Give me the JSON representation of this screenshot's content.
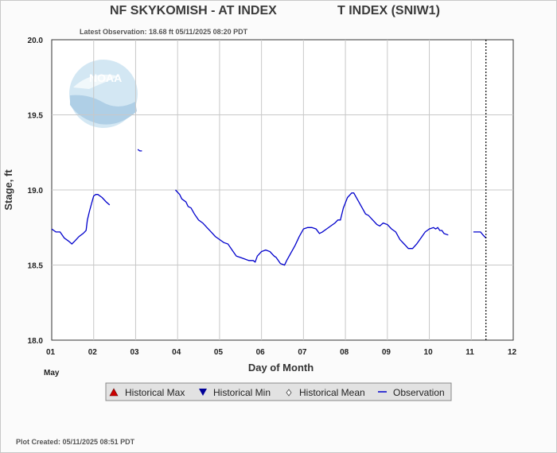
{
  "header": {
    "title_left": "NF SKYKOMISH - AT INDEX",
    "title_right": "T INDEX  (SNIW1)",
    "latest_observation": "Latest Observation: 18.68 ft 05/11/2025 08:20 PDT"
  },
  "footer": {
    "plot_created": "Plot Created: 05/11/2025 08:51 PDT"
  },
  "logo_text": "NOAA",
  "colors": {
    "observation": "#0000cc",
    "historical_max": "#cc0000",
    "historical_min": "#000099",
    "grid": "#c8c8c8"
  },
  "chart_data": {
    "type": "line",
    "xlabel": "Day of Month",
    "ylabel": "Stage, ft",
    "month_label": "May",
    "xlim": [
      1,
      12
    ],
    "ylim": [
      18.0,
      20.0
    ],
    "x_ticks": [
      1,
      2,
      3,
      4,
      5,
      6,
      7,
      8,
      9,
      10,
      11,
      12
    ],
    "x_tick_labels": [
      "01",
      "02",
      "03",
      "04",
      "05",
      "06",
      "07",
      "08",
      "09",
      "10",
      "11",
      "12"
    ],
    "y_ticks": [
      18.0,
      18.5,
      19.0,
      19.5,
      20.0
    ],
    "y_tick_labels": [
      "18.0",
      "18.5",
      "19.0",
      "19.5",
      "20.0"
    ],
    "grid": true,
    "current_time_marker_x": 11.35,
    "legend": {
      "position": "bottom",
      "entries": [
        {
          "label": "Historical Max",
          "symbol": "triangle-up"
        },
        {
          "label": "Historical Min",
          "symbol": "triangle-down"
        },
        {
          "label": "Historical Mean",
          "symbol": "diamond"
        },
        {
          "label": "Observation",
          "symbol": "line"
        }
      ]
    },
    "series": [
      {
        "name": "Observation",
        "segments": [
          [
            [
              1.0,
              18.74
            ],
            [
              1.05,
              18.73
            ],
            [
              1.1,
              18.72
            ],
            [
              1.2,
              18.72
            ],
            [
              1.3,
              18.68
            ],
            [
              1.4,
              18.66
            ],
            [
              1.48,
              18.64
            ],
            [
              1.55,
              18.66
            ],
            [
              1.65,
              18.69
            ],
            [
              1.75,
              18.71
            ],
            [
              1.82,
              18.73
            ],
            [
              1.85,
              18.8
            ],
            [
              1.9,
              18.86
            ],
            [
              1.95,
              18.91
            ],
            [
              2.0,
              18.96
            ],
            [
              2.05,
              18.97
            ],
            [
              2.1,
              18.97
            ],
            [
              2.2,
              18.95
            ],
            [
              2.3,
              18.92
            ],
            [
              2.38,
              18.9
            ]
          ],
          [
            [
              3.05,
              19.27
            ],
            [
              3.1,
              19.26
            ],
            [
              3.15,
              19.26
            ]
          ],
          [
            [
              3.95,
              19.0
            ],
            [
              4.05,
              18.97
            ],
            [
              4.1,
              18.94
            ],
            [
              4.2,
              18.92
            ],
            [
              4.25,
              18.89
            ],
            [
              4.32,
              18.88
            ],
            [
              4.4,
              18.84
            ],
            [
              4.5,
              18.8
            ],
            [
              4.6,
              18.78
            ],
            [
              4.7,
              18.75
            ],
            [
              4.8,
              18.72
            ],
            [
              4.9,
              18.69
            ],
            [
              5.0,
              18.67
            ],
            [
              5.1,
              18.65
            ],
            [
              5.2,
              18.64
            ],
            [
              5.3,
              18.6
            ],
            [
              5.4,
              18.56
            ],
            [
              5.5,
              18.55
            ],
            [
              5.6,
              18.54
            ],
            [
              5.7,
              18.53
            ],
            [
              5.8,
              18.53
            ],
            [
              5.85,
              18.52
            ],
            [
              5.9,
              18.56
            ],
            [
              6.0,
              18.59
            ],
            [
              6.1,
              18.6
            ],
            [
              6.2,
              18.59
            ],
            [
              6.3,
              18.56
            ],
            [
              6.35,
              18.55
            ],
            [
              6.45,
              18.51
            ],
            [
              6.55,
              18.5
            ],
            [
              6.6,
              18.53
            ],
            [
              6.7,
              18.58
            ],
            [
              6.8,
              18.63
            ],
            [
              6.9,
              18.69
            ],
            [
              7.0,
              18.74
            ],
            [
              7.1,
              18.75
            ],
            [
              7.2,
              18.75
            ],
            [
              7.3,
              18.74
            ],
            [
              7.38,
              18.71
            ],
            [
              7.45,
              18.72
            ],
            [
              7.55,
              18.74
            ],
            [
              7.65,
              18.76
            ],
            [
              7.75,
              18.78
            ],
            [
              7.82,
              18.8
            ],
            [
              7.88,
              18.8
            ],
            [
              7.95,
              18.88
            ],
            [
              8.05,
              18.95
            ],
            [
              8.15,
              18.98
            ],
            [
              8.2,
              18.98
            ],
            [
              8.3,
              18.93
            ],
            [
              8.4,
              18.88
            ],
            [
              8.48,
              18.84
            ],
            [
              8.55,
              18.83
            ],
            [
              8.65,
              18.8
            ],
            [
              8.75,
              18.77
            ],
            [
              8.82,
              18.76
            ],
            [
              8.9,
              18.78
            ],
            [
              9.0,
              18.77
            ],
            [
              9.1,
              18.74
            ],
            [
              9.2,
              18.72
            ],
            [
              9.3,
              18.67
            ],
            [
              9.4,
              18.64
            ],
            [
              9.5,
              18.61
            ],
            [
              9.6,
              18.61
            ],
            [
              9.7,
              18.64
            ],
            [
              9.8,
              18.68
            ],
            [
              9.9,
              18.72
            ],
            [
              10.0,
              18.74
            ],
            [
              10.1,
              18.75
            ],
            [
              10.15,
              18.74
            ],
            [
              10.2,
              18.75
            ],
            [
              10.25,
              18.73
            ],
            [
              10.3,
              18.73
            ],
            [
              10.35,
              18.71
            ],
            [
              10.45,
              18.7
            ]
          ],
          [
            [
              11.05,
              18.72
            ],
            [
              11.15,
              18.72
            ],
            [
              11.22,
              18.72
            ],
            [
              11.28,
              18.7
            ],
            [
              11.35,
              18.68
            ]
          ]
        ]
      }
    ]
  }
}
